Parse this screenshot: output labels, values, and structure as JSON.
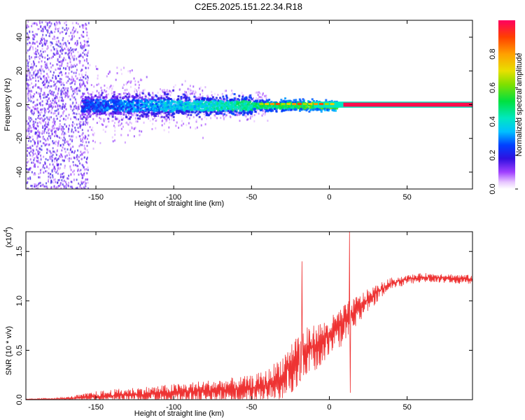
{
  "title": "C2E5.2025.151.22.34.R18",
  "chart_data": [
    {
      "type": "heatmap",
      "xlabel": "Height of straight line (km)",
      "ylabel": "Frequency (Hz)",
      "xlim": [
        -195,
        92
      ],
      "ylim": [
        -50,
        50
      ],
      "xticks": [
        -150,
        -100,
        -50,
        0,
        50
      ],
      "yticks": [
        -40,
        -20,
        0,
        20,
        40
      ],
      "colorbar": {
        "label": "Normalized spectral amplitude",
        "range": [
          0,
          1
        ],
        "ticks": [
          0.0,
          0.2,
          0.4,
          0.6,
          0.8
        ]
      },
      "grid": false
    },
    {
      "type": "line",
      "xlabel": "Height of straight line (km)",
      "ylabel": "SNR (10 * v/v)",
      "multiplier": "(x10",
      "multiplier_exp": "4",
      "multiplier_close": ")",
      "xlim": [
        -195,
        92
      ],
      "ylim": [
        0,
        1.7
      ],
      "xticks": [
        -150,
        -100,
        -50,
        0,
        50
      ],
      "yticks": [
        "0.0",
        "0.5",
        "1.0",
        "1.5"
      ],
      "color": "#ee3333",
      "grid": false,
      "envelope": {
        "x": [
          -195,
          -170,
          -160,
          -150,
          -130,
          -110,
          -90,
          -70,
          -50,
          -40,
          -30,
          -20,
          -10,
          0,
          10,
          20,
          30,
          40,
          50,
          60,
          70,
          80,
          92
        ],
        "base": [
          0.0,
          0.01,
          0.02,
          0.03,
          0.05,
          0.06,
          0.08,
          0.1,
          0.12,
          0.15,
          0.25,
          0.45,
          0.55,
          0.65,
          0.8,
          0.95,
          1.08,
          1.18,
          1.22,
          1.24,
          1.24,
          1.23,
          1.22
        ],
        "spread": [
          0.01,
          0.02,
          0.05,
          0.08,
          0.1,
          0.12,
          0.14,
          0.16,
          0.18,
          0.22,
          0.3,
          0.35,
          0.3,
          0.25,
          0.25,
          0.18,
          0.12,
          0.08,
          0.06,
          0.06,
          0.06,
          0.06,
          0.06
        ]
      },
      "spikes": [
        {
          "x": -17.5,
          "y": 1.4
        },
        {
          "x": 13.0,
          "y": 1.7
        },
        {
          "x": 13.5,
          "y": 0.07
        },
        {
          "x": -19.0,
          "y": 0.2
        }
      ]
    }
  ]
}
